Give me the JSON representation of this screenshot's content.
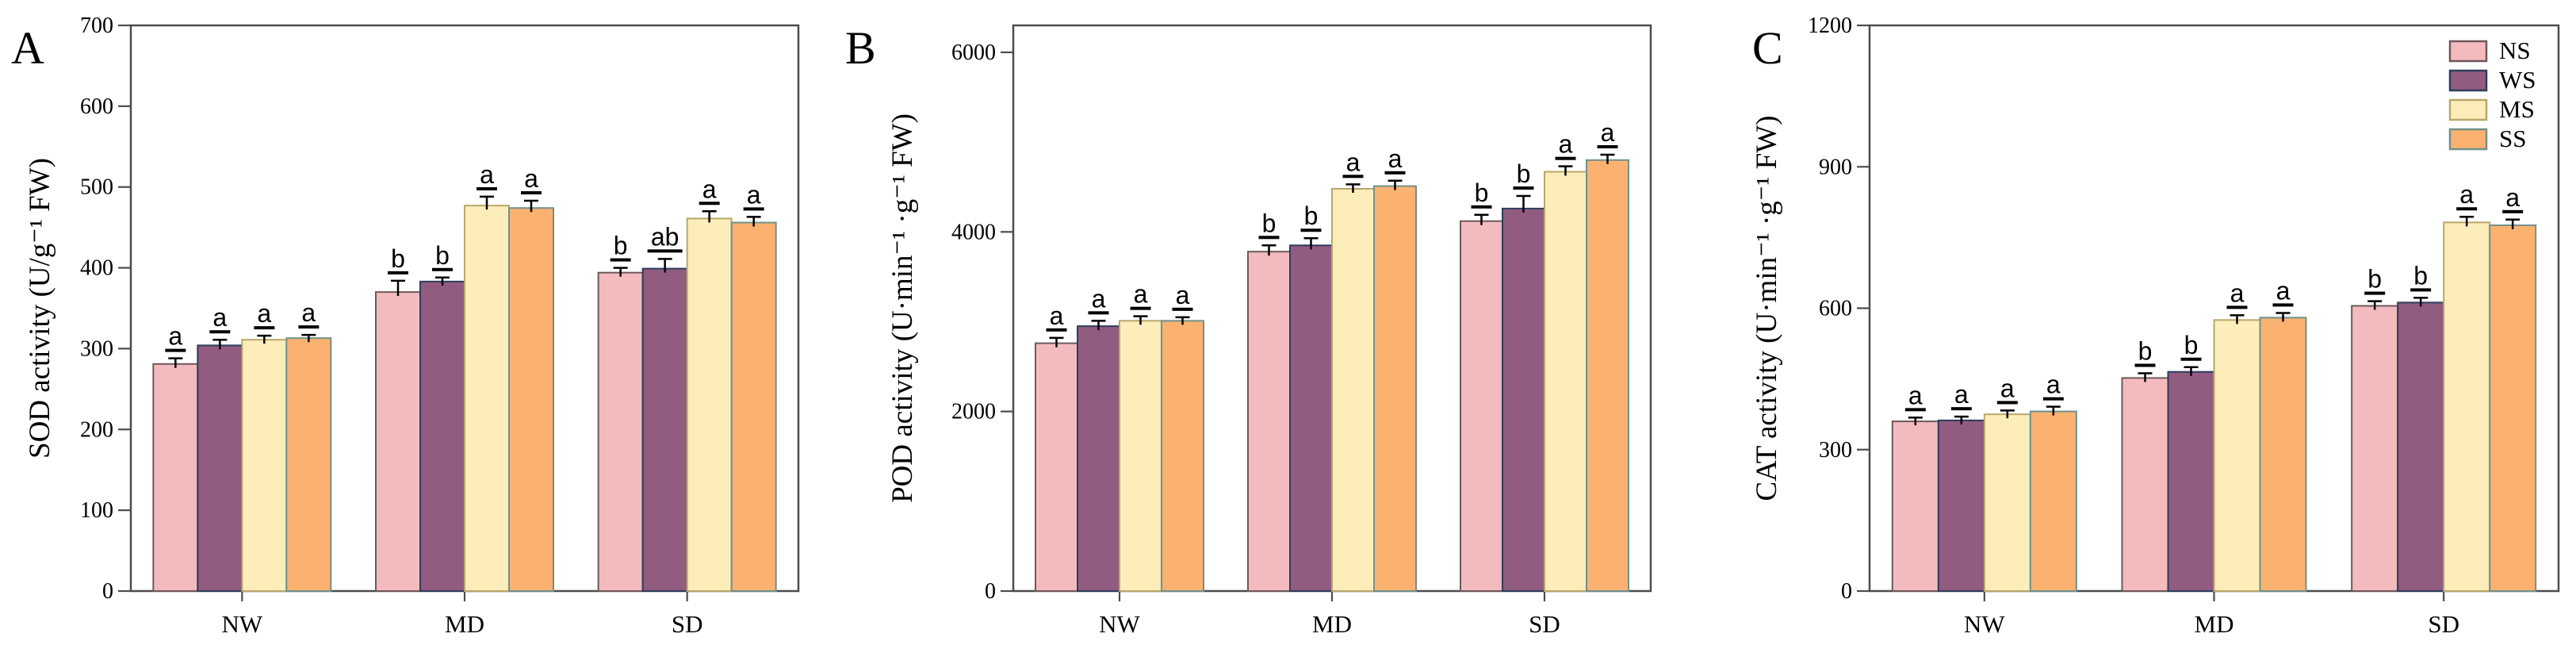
{
  "figure": {
    "background": "#ffffff",
    "frame_color": "#4d4d4d",
    "text_color": "#000000"
  },
  "legend": {
    "position": "top-right-of-panel-C",
    "entries": [
      {
        "label": "NS",
        "fill": "#f4bbbf",
        "edge": "#6e585c"
      },
      {
        "label": "WS",
        "fill": "#925b80",
        "edge": "#2e3d5c"
      },
      {
        "label": "MS",
        "fill": "#fcedbb",
        "edge": "#b9a76b"
      },
      {
        "label": "SS",
        "fill": "#fbb271",
        "edge": "#71908a"
      }
    ]
  },
  "chart_data": [
    {
      "type": "bar",
      "panel_label": "A",
      "ylabel": "SOD activity (U/g⁻¹ FW)",
      "xlabel": "",
      "ylim": [
        0,
        700
      ],
      "yticks": [
        0,
        100,
        200,
        300,
        400,
        500,
        600,
        700
      ],
      "axis_top_value": 700,
      "grid": false,
      "categories": [
        "NW",
        "MD",
        "SD"
      ],
      "series": [
        {
          "name": "NS",
          "values": [
            281,
            370,
            394
          ],
          "errors": [
            7,
            14,
            6
          ],
          "sig_letters": [
            "a",
            "b",
            "b"
          ]
        },
        {
          "name": "WS",
          "values": [
            304,
            383,
            399
          ],
          "errors": [
            7,
            5,
            12
          ],
          "sig_letters": [
            "a",
            "b",
            "ab"
          ]
        },
        {
          "name": "MS",
          "values": [
            311,
            477,
            461
          ],
          "errors": [
            5,
            11,
            9
          ],
          "sig_letters": [
            "a",
            "a",
            "a"
          ]
        },
        {
          "name": "SS",
          "values": [
            313,
            474,
            456
          ],
          "errors": [
            4,
            9,
            7
          ],
          "sig_letters": [
            "a",
            "a",
            "a"
          ]
        }
      ]
    },
    {
      "type": "bar",
      "panel_label": "B",
      "ylabel": "POD activity (U·min⁻¹ ·g⁻¹ FW)",
      "xlabel": "",
      "ylim": [
        0,
        6000
      ],
      "yticks": [
        0,
        2000,
        4000,
        6000
      ],
      "axis_top_value": 6300,
      "grid": false,
      "categories": [
        "NW",
        "MD",
        "SD"
      ],
      "series": [
        {
          "name": "NS",
          "values": [
            2760,
            3780,
            4120
          ],
          "errors": [
            60,
            70,
            70
          ],
          "sig_letters": [
            "a",
            "b",
            "b"
          ]
        },
        {
          "name": "WS",
          "values": [
            2950,
            3850,
            4260
          ],
          "errors": [
            60,
            80,
            140
          ],
          "sig_letters": [
            "a",
            "b",
            "b"
          ]
        },
        {
          "name": "MS",
          "values": [
            3010,
            4480,
            4670
          ],
          "errors": [
            50,
            50,
            60
          ],
          "sig_letters": [
            "a",
            "a",
            "a"
          ]
        },
        {
          "name": "SS",
          "values": [
            3010,
            4510,
            4800
          ],
          "errors": [
            40,
            60,
            60
          ],
          "sig_letters": [
            "a",
            "a",
            "a"
          ]
        }
      ]
    },
    {
      "type": "bar",
      "panel_label": "C",
      "ylabel": "CAT activity (U·min⁻¹ ·g⁻¹ FW)",
      "xlabel": "",
      "ylim": [
        0,
        1200
      ],
      "yticks": [
        0,
        300,
        600,
        900,
        1200
      ],
      "axis_top_value": 1200,
      "grid": false,
      "categories": [
        "NW",
        "MD",
        "SD"
      ],
      "series": [
        {
          "name": "NS",
          "values": [
            360,
            452,
            605
          ],
          "errors": [
            8,
            10,
            10
          ],
          "sig_letters": [
            "a",
            "b",
            "b"
          ]
        },
        {
          "name": "WS",
          "values": [
            362,
            465,
            612
          ],
          "errors": [
            8,
            10,
            10
          ],
          "sig_letters": [
            "a",
            "b",
            "b"
          ]
        },
        {
          "name": "MS",
          "values": [
            375,
            575,
            782
          ],
          "errors": [
            8,
            10,
            12
          ],
          "sig_letters": [
            "a",
            "a",
            "a"
          ]
        },
        {
          "name": "SS",
          "values": [
            381,
            580,
            776
          ],
          "errors": [
            10,
            10,
            12
          ],
          "sig_letters": [
            "a",
            "a",
            "a"
          ]
        }
      ]
    }
  ]
}
